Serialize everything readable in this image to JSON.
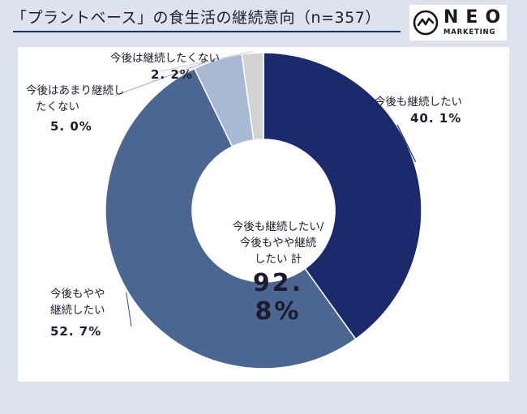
{
  "header": {
    "title": "「プラントベース」の食生活の継続意向（n=357）",
    "logo_word": "NEO",
    "logo_sub": "MARKETING"
  },
  "chart_data": {
    "type": "pie",
    "style": "donut",
    "categories": [
      "今後も継続したい",
      "今後もやや継続したい",
      "今後はあまり継続したくない",
      "今後は継続したくない"
    ],
    "values": [
      40.1,
      52.7,
      5.0,
      2.2
    ],
    "value_labels": [
      "40. 1%",
      "52. 7%",
      "5. 0%",
      "2. 2%"
    ],
    "colors": [
      "#1b2a6b",
      "#4b6691",
      "#a7b9d3",
      "#d3d3d3"
    ],
    "center_text": [
      "今後も継続したい/",
      "今後もやや継続",
      "したい 計"
    ],
    "center_value": "92. 8%"
  },
  "labels": {
    "l0_line1": "今後も継続したい",
    "l1_line1": "今後もやや",
    "l1_line2": "継続したい",
    "l2_line1": "今後はあまり継続し",
    "l2_line2": "たくない",
    "l3_line1": "今後は継続したくない"
  }
}
